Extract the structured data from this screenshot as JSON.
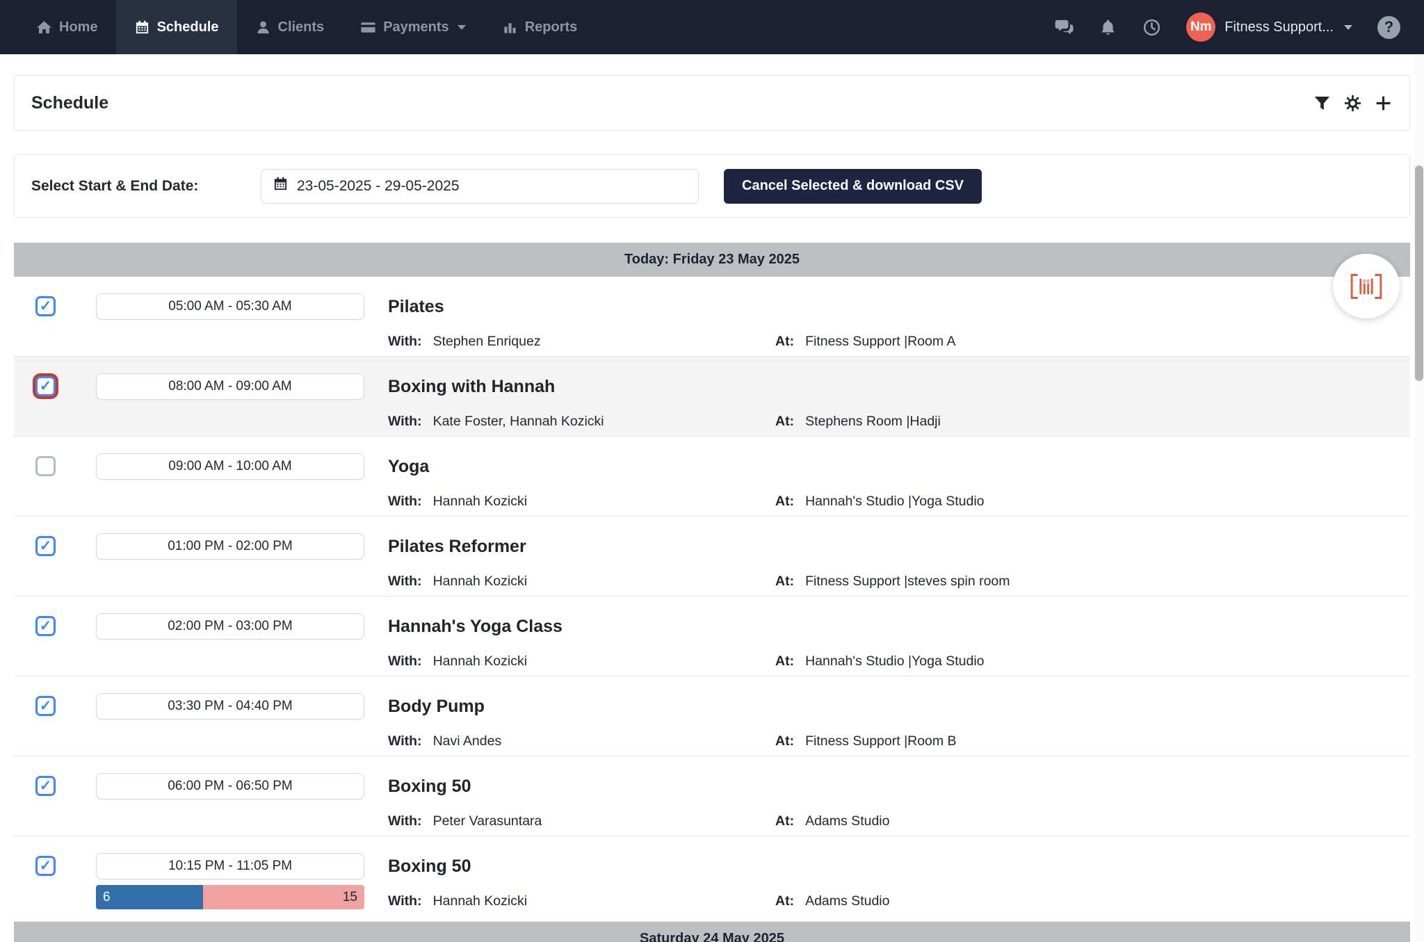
{
  "nav": {
    "items": [
      {
        "label": "Home",
        "icon": "home",
        "active": false,
        "dropdown": false
      },
      {
        "label": "Schedule",
        "icon": "calendar",
        "active": true,
        "dropdown": false
      },
      {
        "label": "Clients",
        "icon": "person",
        "active": false,
        "dropdown": false
      },
      {
        "label": "Payments",
        "icon": "credit-card",
        "active": false,
        "dropdown": true
      },
      {
        "label": "Reports",
        "icon": "bar-chart",
        "active": false,
        "dropdown": false
      }
    ],
    "icons_left_of_user": [
      "chat",
      "bell",
      "clock"
    ],
    "user": {
      "initials": "Nm",
      "name": "Fitness Support...",
      "avatar_color": "#ee6253"
    },
    "help_icon": "help"
  },
  "page": {
    "title": "Schedule"
  },
  "toolbar_icons": [
    "filter",
    "gear",
    "plus"
  ],
  "datebar": {
    "label": "Select Start & End Date:",
    "date_range": "23-05-2025 - 29-05-2025",
    "button_label": "Cancel Selected & download CSV"
  },
  "schedule": {
    "day_header": "Today: Friday 23 May 2025",
    "next_day_header": "Saturday 24 May 2025",
    "with_label": "With:",
    "at_label": "At:",
    "rows": [
      {
        "checked": true,
        "focused": false,
        "highlighted": false,
        "time": "05:00 AM - 05:30 AM",
        "title": "Pilates",
        "with": "Stephen Enriquez",
        "at": "Fitness Support |Room A"
      },
      {
        "checked": true,
        "focused": true,
        "highlighted": true,
        "time": "08:00 AM - 09:00 AM",
        "title": "Boxing with Hannah",
        "with": "Kate Foster, Hannah Kozicki",
        "at": "Stephens Room |Hadji"
      },
      {
        "checked": false,
        "focused": false,
        "highlighted": false,
        "time": "09:00 AM - 10:00 AM",
        "time_note": "",
        "title": "Yoga",
        "with": "Hannah Kozicki",
        "at": "Hannah's Studio |Yoga Studio"
      },
      {
        "checked": true,
        "focused": false,
        "highlighted": false,
        "time": "01:00 PM - 02:00 PM",
        "title": "Pilates Reformer",
        "with": "Hannah Kozicki",
        "at": "Fitness Support |steves spin room"
      },
      {
        "checked": true,
        "focused": false,
        "highlighted": false,
        "time": "02:00 PM - 03:00 PM",
        "title": "Hannah's Yoga Class",
        "with": "Hannah Kozicki",
        "at": "Hannah's Studio |Yoga Studio"
      },
      {
        "checked": true,
        "focused": false,
        "highlighted": false,
        "time": "03:30 PM - 04:40 PM",
        "title": "Body Pump",
        "with": "Navi Andes",
        "at": "Fitness Support |Room B"
      },
      {
        "checked": true,
        "focused": false,
        "highlighted": false,
        "time": "06:00 PM - 06:50 PM",
        "title": "Boxing 50",
        "with": "Peter Varasuntara",
        "at": "Adams Studio"
      },
      {
        "checked": true,
        "focused": false,
        "highlighted": false,
        "time": "10:15 PM - 11:05 PM",
        "title": "Boxing 50",
        "with": "Hannah Kozicki",
        "at": "Adams Studio",
        "capacity": {
          "booked": 6,
          "capacity": 15
        }
      }
    ]
  },
  "colors": {
    "nav_bg": "#1b2032",
    "nav_active_bg": "#27313f",
    "button_navy": "#1f2440",
    "checkbox_blue": "#4285f4",
    "focus_red": "#c6392f",
    "capacity_booked_blue": "#336fa8",
    "capacity_free_pink": "#f0a2a0",
    "day_bar_gray": "#bcc0c3",
    "avatar_red": "#ee6253",
    "scan_orange": "#d85f44"
  }
}
